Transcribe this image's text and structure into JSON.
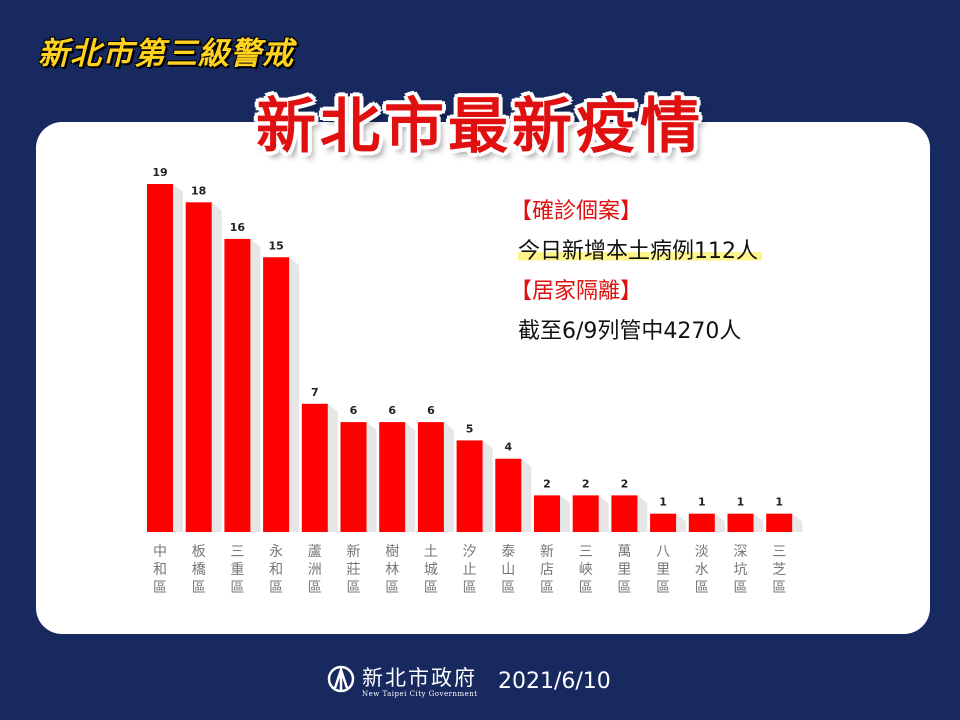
{
  "banner": "新北市第三級警戒",
  "title": "新北市最新疫情",
  "info": {
    "confirmed_heading": "【確診個案】",
    "confirmed_text": "今日新增本土病例112人",
    "quarantine_heading": "【居家隔離】",
    "quarantine_text": "截至6/9列管中4270人"
  },
  "footer": {
    "org_cn": "新北市政府",
    "org_en": "New Taipei City Government",
    "date": "2021/6/10"
  },
  "colors": {
    "bar": "#ff0000",
    "title": "#e01010",
    "banner": "#ffd21f",
    "background": "#17295f"
  },
  "chart_data": {
    "type": "bar",
    "categories": [
      "中和區",
      "板橋區",
      "三重區",
      "永和區",
      "蘆洲區",
      "新莊區",
      "樹林區",
      "土城區",
      "汐止區",
      "泰山區",
      "新店區",
      "三峽區",
      "萬里區",
      "八里區",
      "淡水區",
      "深坑區",
      "三芝區"
    ],
    "values": [
      19,
      18,
      16,
      15,
      7,
      6,
      6,
      6,
      5,
      4,
      2,
      2,
      2,
      1,
      1,
      1,
      1
    ],
    "ylim": [
      0,
      19
    ],
    "xlabel": "",
    "ylabel": "",
    "grid": false,
    "data_labels": true
  }
}
